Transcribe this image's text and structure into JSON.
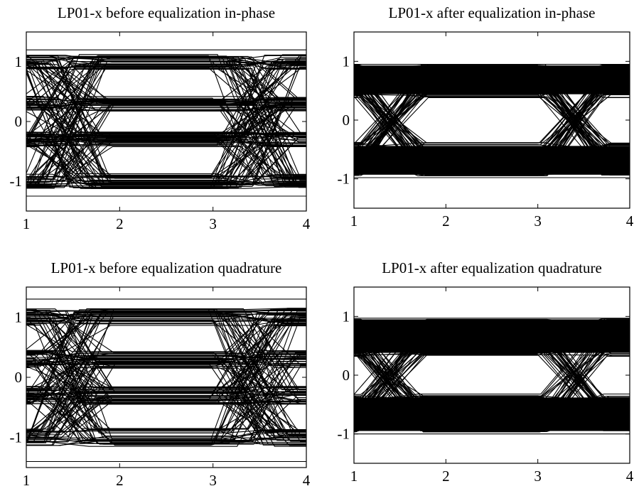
{
  "chart_data": [
    {
      "type": "line",
      "title": "LP01-x before equalization in-phase",
      "xlabel": "",
      "ylabel": "",
      "xlim": [
        1,
        4
      ],
      "ylim": [
        -1.5,
        1.5
      ],
      "xticks": [
        "1",
        "2",
        "3",
        "4"
      ],
      "yticks": [
        "1",
        "0",
        "-1"
      ],
      "eye_diagram": {
        "levels": [
          1.0,
          0.3,
          -0.3,
          -1.0
        ],
        "level_spread": 0.25,
        "crossing_x": [
          1.45,
          3.45
        ],
        "outer_bounds": [
          1.2,
          -1.25
        ]
      }
    },
    {
      "type": "line",
      "title": "LP01-x after equalization in-phase",
      "xlabel": "",
      "ylabel": "",
      "xlim": [
        1,
        4
      ],
      "ylim": [
        -1.5,
        1.5
      ],
      "xticks": [
        "1",
        "2",
        "3",
        "4"
      ],
      "yticks": [
        "1",
        "0",
        "-1"
      ],
      "eye_diagram": {
        "band_high": [
          0.38,
          0.95
        ],
        "band_low": [
          -0.95,
          -0.38
        ],
        "crossing_x": [
          1.4,
          3.4
        ],
        "outer_bounds": [
          0.95,
          -0.98
        ]
      }
    },
    {
      "type": "line",
      "title": "LP01-x before equalization quadrature",
      "xlabel": "",
      "ylabel": "",
      "xlim": [
        1,
        4
      ],
      "ylim": [
        -1.5,
        1.5
      ],
      "xticks": [
        "1",
        "2",
        "3",
        "4"
      ],
      "yticks": [
        "1",
        "0",
        "-1"
      ],
      "eye_diagram": {
        "levels": [
          1.0,
          0.3,
          -0.3,
          -1.0
        ],
        "level_spread": 0.3,
        "crossing_x": [
          1.45,
          3.45
        ],
        "outer_bounds": [
          1.3,
          -1.4
        ]
      }
    },
    {
      "type": "line",
      "title": "LP01-x after equalization quadrature",
      "xlabel": "",
      "ylabel": "",
      "xlim": [
        1,
        4
      ],
      "ylim": [
        -1.5,
        1.5
      ],
      "xticks": [
        "1",
        "2",
        "3",
        "4"
      ],
      "yticks": [
        "1",
        "0",
        "-1"
      ],
      "eye_diagram": {
        "band_high": [
          0.32,
          0.97
        ],
        "band_low": [
          -0.97,
          -0.32
        ],
        "crossing_x": [
          1.4,
          3.4
        ],
        "outer_bounds": [
          0.97,
          -1.0
        ]
      }
    }
  ]
}
